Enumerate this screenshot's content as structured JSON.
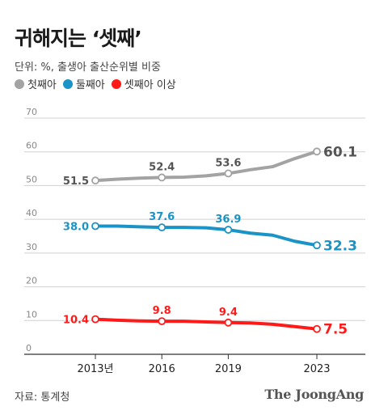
{
  "header": {
    "title": "귀해지는 ‘셋째’",
    "subtitle": "단위: %, 출생아 출산순위별 비중"
  },
  "footer": {
    "source": "자료: 통계청",
    "brand": "The JoongAng"
  },
  "chart_data": {
    "type": "line",
    "title": "귀해지는 ‘셋째’",
    "ylim": [
      0,
      70
    ],
    "yticks": [
      0,
      10,
      20,
      30,
      40,
      50,
      60,
      70
    ],
    "x": [
      2013,
      2014,
      2015,
      2016,
      2017,
      2018,
      2019,
      2020,
      2021,
      2022,
      2023
    ],
    "xticks": [
      {
        "x": 2013,
        "label": "2013년"
      },
      {
        "x": 2016,
        "label": "2016"
      },
      {
        "x": 2019,
        "label": "2019"
      },
      {
        "x": 2023,
        "label": "2023"
      }
    ],
    "grid": true,
    "legend_position": "top-left",
    "series": [
      {
        "name": "첫째아",
        "color": "#a3a3a3",
        "label_color": "#555555",
        "values": [
          51.5,
          51.9,
          52.2,
          52.4,
          52.5,
          52.9,
          53.6,
          54.7,
          55.6,
          58.0,
          60.1
        ],
        "labels": [
          {
            "x": 2013,
            "text": "51.5"
          },
          {
            "x": 2016,
            "text": "52.4"
          },
          {
            "x": 2019,
            "text": "53.6"
          },
          {
            "x": 2023,
            "text": "60.1"
          }
        ]
      },
      {
        "name": "둘째아",
        "color": "#1a93c6",
        "label_color": "#1a93c6",
        "values": [
          38.0,
          38.0,
          37.8,
          37.6,
          37.6,
          37.5,
          36.9,
          35.9,
          35.3,
          33.5,
          32.3
        ],
        "labels": [
          {
            "x": 2013,
            "text": "38.0"
          },
          {
            "x": 2016,
            "text": "37.6"
          },
          {
            "x": 2019,
            "text": "36.9"
          },
          {
            "x": 2023,
            "text": "32.3"
          }
        ]
      },
      {
        "name": "셋째아 이상",
        "color": "#ff1a1a",
        "label_color": "#ff1a1a",
        "values": [
          10.4,
          10.1,
          9.9,
          9.8,
          9.8,
          9.6,
          9.4,
          9.3,
          8.9,
          8.2,
          7.5
        ],
        "labels": [
          {
            "x": 2013,
            "text": "10.4"
          },
          {
            "x": 2016,
            "text": "9.8"
          },
          {
            "x": 2019,
            "text": "9.4"
          },
          {
            "x": 2023,
            "text": "7.5"
          }
        ]
      }
    ]
  }
}
